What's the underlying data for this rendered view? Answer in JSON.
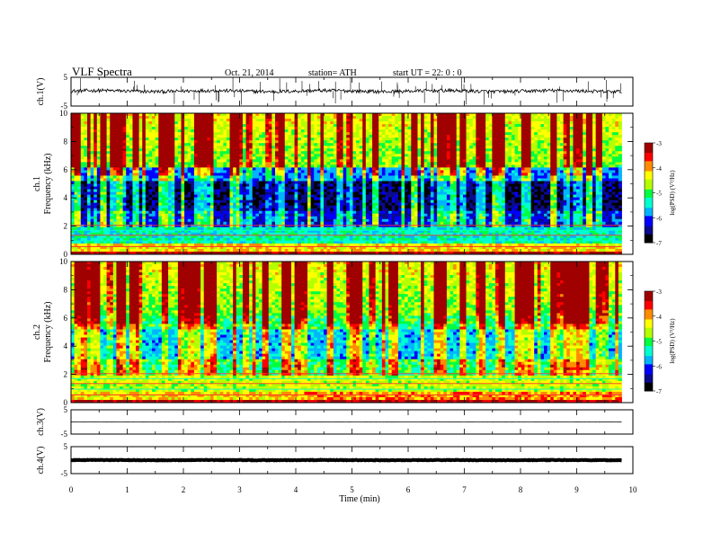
{
  "header": {
    "title": "VLF  Spectra",
    "date": "Oct. 21, 2014",
    "station": "station= ATH",
    "start_ut": "start  UT  =    22: 0   : 0"
  },
  "chart_data": {
    "type": "spectrogram",
    "x": {
      "label": "Time  (min)",
      "range": [
        0,
        10
      ],
      "ticks": [
        "0",
        "1",
        "2",
        "3",
        "4",
        "5",
        "6",
        "7",
        "8",
        "9",
        "10"
      ],
      "data_end": 9.8
    },
    "panels": [
      {
        "id": "ch1_waveform",
        "type": "line",
        "ylabel": "ch.1(V)",
        "ylim": [
          -5,
          5
        ],
        "yticks": [
          "5",
          "-5"
        ],
        "baseline": 0.2,
        "noise": 0.6,
        "spike_count": 60
      },
      {
        "id": "ch1_spectrogram",
        "type": "heatmap",
        "ylabel": "Frequency  (kHz)",
        "channel_label": "ch.1",
        "ylim": [
          0,
          10
        ],
        "yticks": [
          "0",
          "2",
          "4",
          "6",
          "8",
          "10"
        ],
        "colorbar": {
          "label": "log(PSD) (V²/Hz)",
          "range": [
            -7,
            -3
          ],
          "ticks": [
            "-3",
            "-4",
            "-5",
            "-6",
            "-7"
          ]
        }
      },
      {
        "id": "ch2_spectrogram",
        "type": "heatmap",
        "ylabel": "Frequency  (kHz)",
        "channel_label": "ch.2",
        "ylim": [
          0,
          10
        ],
        "yticks": [
          "0",
          "2",
          "4",
          "6",
          "8",
          "10"
        ],
        "colorbar": {
          "label": "log(PSD) (V²/Hz)",
          "range": [
            -7,
            -3
          ],
          "ticks": [
            "-3",
            "-4",
            "-5",
            "-6",
            "-7"
          ]
        }
      },
      {
        "id": "ch3_waveform",
        "type": "line",
        "ylabel": "ch.3(V)",
        "ylim": [
          -5,
          5
        ],
        "yticks": [
          "5",
          "-5"
        ],
        "baseline": 0.0,
        "noise": 0.05
      },
      {
        "id": "ch4_waveform",
        "type": "line",
        "ylabel": "ch.4(V)",
        "ylim": [
          -5,
          5
        ],
        "yticks": [
          "5",
          "-5"
        ],
        "baseline": 0.0,
        "noise": 0.1
      }
    ],
    "colormap": [
      "#000000",
      "#0a0a8c",
      "#0000ff",
      "#00b4ff",
      "#00ffd0",
      "#00ff40",
      "#b4ff00",
      "#ffff00",
      "#ff8c00",
      "#ff0000",
      "#a00000"
    ]
  }
}
